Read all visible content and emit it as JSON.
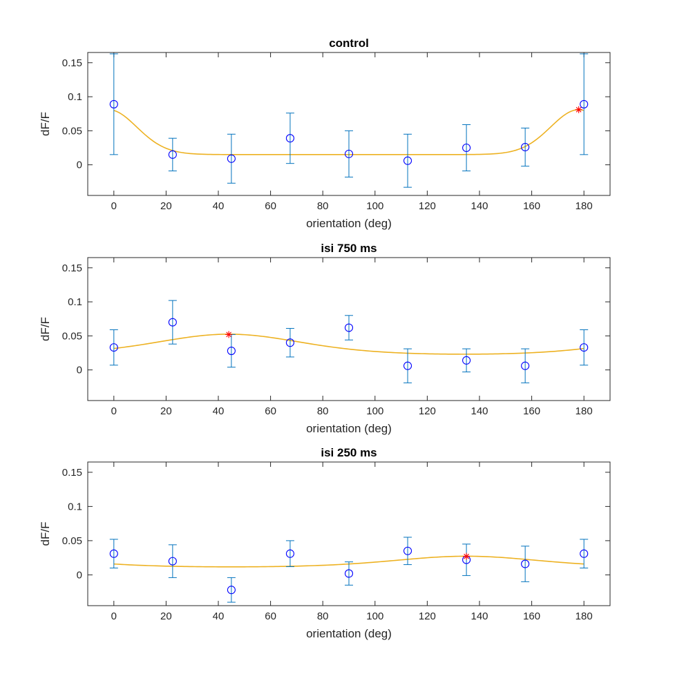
{
  "colors": {
    "fit": "#EDB120",
    "marker": "#0000FF",
    "errorbar": "#0072BD",
    "peak": "#FF0000",
    "axis": "#262626"
  },
  "chart_data": [
    {
      "type": "scatter",
      "title": "control",
      "xlabel": "orientation (deg)",
      "ylabel": "dF/F",
      "xlim": [
        -10,
        190
      ],
      "ylim": [
        -0.045,
        0.165
      ],
      "xticks": [
        0,
        20,
        40,
        60,
        80,
        100,
        120,
        140,
        160,
        180
      ],
      "yticks": [
        0,
        0.05,
        0.1,
        0.15
      ],
      "ytick_labels": [
        "0",
        "0.05",
        "0.1",
        "0.15"
      ],
      "points": {
        "x": [
          0,
          22.5,
          45,
          67.5,
          90,
          112.5,
          135,
          157.5,
          180
        ],
        "y": [
          0.089,
          0.015,
          0.009,
          0.039,
          0.016,
          0.006,
          0.025,
          0.026,
          0.089
        ],
        "err": [
          0.074,
          0.024,
          0.036,
          0.037,
          0.034,
          0.039,
          0.034,
          0.028,
          0.074
        ]
      },
      "fit": {
        "baseline": 0.015,
        "amplitude": 0.066,
        "peak_deg": 178,
        "kappa": 7.0
      },
      "peak_marker": {
        "x": 178,
        "y": 0.081
      }
    },
    {
      "type": "scatter",
      "title": "isi 750 ms",
      "xlabel": "orientation (deg)",
      "ylabel": "dF/F",
      "xlim": [
        -10,
        190
      ],
      "ylim": [
        -0.045,
        0.165
      ],
      "xticks": [
        0,
        20,
        40,
        60,
        80,
        100,
        120,
        140,
        160,
        180
      ],
      "yticks": [
        0,
        0.05,
        0.1,
        0.15
      ],
      "ytick_labels": [
        "0",
        "0.05",
        "0.1",
        "0.15"
      ],
      "points": {
        "x": [
          0,
          22.5,
          45,
          67.5,
          90,
          112.5,
          135,
          157.5,
          180
        ],
        "y": [
          0.033,
          0.07,
          0.028,
          0.04,
          0.062,
          0.006,
          0.014,
          0.006,
          0.033
        ],
        "err": [
          0.026,
          0.032,
          0.024,
          0.021,
          0.018,
          0.025,
          0.017,
          0.025,
          0.026
        ]
      },
      "fit": {
        "baseline": 0.0185,
        "amplitude": 0.034,
        "peak_deg": 44,
        "kappa": 1.0
      },
      "peak_marker": {
        "x": 44,
        "y": 0.052
      }
    },
    {
      "type": "scatter",
      "title": "isi 250 ms",
      "xlabel": "orientation (deg)",
      "ylabel": "dF/F",
      "xlim": [
        -10,
        190
      ],
      "ylim": [
        -0.045,
        0.165
      ],
      "xticks": [
        0,
        20,
        40,
        60,
        80,
        100,
        120,
        140,
        160,
        180
      ],
      "yticks": [
        0,
        0.05,
        0.1,
        0.15
      ],
      "ytick_labels": [
        "0",
        "0.05",
        "0.1",
        "0.15"
      ],
      "points": {
        "x": [
          0,
          22.5,
          45,
          67.5,
          90,
          112.5,
          135,
          157.5,
          180
        ],
        "y": [
          0.031,
          0.02,
          -0.022,
          0.031,
          0.002,
          0.035,
          0.022,
          0.016,
          0.031
        ],
        "err": [
          0.021,
          0.024,
          0.018,
          0.019,
          0.017,
          0.02,
          0.023,
          0.026,
          0.021
        ]
      },
      "fit": {
        "baseline": 0.0093,
        "amplitude": 0.018,
        "peak_deg": 135,
        "kappa": 1.0
      },
      "peak_marker": {
        "x": 135,
        "y": 0.027
      }
    }
  ]
}
